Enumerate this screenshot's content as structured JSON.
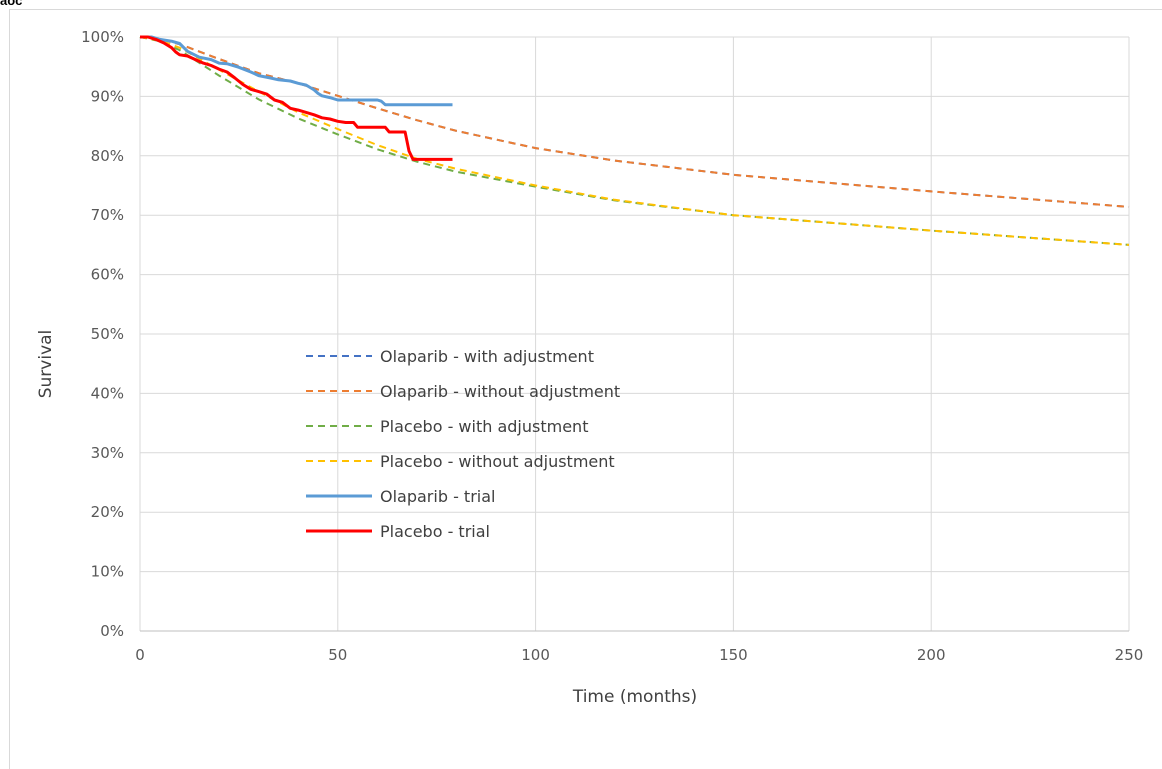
{
  "header": {
    "label": "aoc"
  },
  "chart_data": {
    "type": "line",
    "title": "",
    "xlabel": "Time (months)",
    "ylabel": "Survival",
    "xlim": [
      0,
      250
    ],
    "ylim": [
      0,
      100
    ],
    "x_ticks": [
      0,
      50,
      100,
      150,
      200,
      250
    ],
    "y_ticks": [
      0,
      10,
      20,
      30,
      40,
      50,
      60,
      70,
      80,
      90,
      100
    ],
    "y_tick_labels": [
      "0%",
      "10%",
      "20%",
      "30%",
      "40%",
      "50%",
      "60%",
      "70%",
      "80%",
      "90%",
      "100%"
    ],
    "grid": true,
    "legend_position": "center-left",
    "series": [
      {
        "name": "Olaparib - with adjustment",
        "style": "dashed",
        "color": "#4472c4",
        "x": [
          0,
          5,
          10,
          20,
          30,
          40,
          50,
          60,
          70,
          80,
          100,
          120,
          150,
          200,
          250
        ],
        "y": [
          100,
          99.6,
          98.8,
          96.3,
          93.9,
          92.2,
          90.1,
          88.0,
          86.0,
          84.2,
          81.3,
          79.2,
          76.8,
          74.0,
          71.4
        ]
      },
      {
        "name": "Olaparib - without adjustment",
        "style": "dashed",
        "color": "#ed7d31",
        "x": [
          0,
          5,
          10,
          20,
          30,
          40,
          50,
          60,
          70,
          80,
          100,
          120,
          150,
          200,
          250
        ],
        "y": [
          100,
          99.6,
          98.8,
          96.3,
          93.9,
          92.2,
          90.1,
          88.0,
          86.0,
          84.2,
          81.3,
          79.2,
          76.8,
          74.0,
          71.4
        ]
      },
      {
        "name": "Placebo - with adjustment",
        "style": "dashed",
        "color": "#70ad47",
        "x": [
          0,
          5,
          10,
          20,
          30,
          40,
          50,
          60,
          70,
          80,
          100,
          120,
          150,
          200,
          250
        ],
        "y": [
          100,
          99.3,
          97.8,
          93.5,
          89.5,
          86.3,
          83.6,
          81.1,
          79.0,
          77.3,
          74.8,
          72.5,
          70.0,
          67.4,
          65.0
        ]
      },
      {
        "name": "Placebo - without adjustment",
        "style": "dashed",
        "color": "#ffc000",
        "x": [
          0,
          5,
          10,
          20,
          30,
          40,
          50,
          60,
          70,
          80,
          100,
          120,
          150,
          200,
          250
        ],
        "y": [
          100,
          99.4,
          98.2,
          94.5,
          90.8,
          87.3,
          84.5,
          81.8,
          79.5,
          77.8,
          75.0,
          72.6,
          70.0,
          67.4,
          65.0
        ]
      },
      {
        "name": "Olaparib - trial",
        "style": "solid",
        "color": "#5b9bd5",
        "x": [
          0,
          3,
          5,
          8,
          10,
          12,
          15,
          18,
          20,
          22,
          25,
          28,
          30,
          33,
          35,
          38,
          40,
          42,
          44,
          45,
          46,
          48,
          50,
          55,
          60,
          61,
          62,
          65,
          70,
          79
        ],
        "y": [
          100,
          100,
          99.6,
          99.3,
          98.9,
          97.6,
          96.6,
          96.2,
          95.6,
          95.5,
          94.9,
          94.1,
          93.5,
          93.1,
          92.8,
          92.6,
          92.2,
          91.9,
          91.1,
          90.5,
          90.1,
          89.8,
          89.4,
          89.4,
          89.4,
          89.2,
          88.6,
          88.6,
          88.6,
          88.6
        ]
      },
      {
        "name": "Placebo - trial",
        "style": "solid",
        "color": "#ff0000",
        "x": [
          0,
          2,
          4,
          6,
          8,
          9,
          10,
          12,
          14,
          16,
          18,
          20,
          22,
          24,
          26,
          28,
          30,
          32,
          34,
          36,
          38,
          40,
          42,
          44,
          46,
          48,
          50,
          52,
          54,
          55,
          58,
          60,
          62,
          63,
          65,
          67,
          68,
          69,
          70,
          79
        ],
        "y": [
          100,
          100,
          99.6,
          99.0,
          98.2,
          97.5,
          97.0,
          96.8,
          96.2,
          95.6,
          95.2,
          94.6,
          94.1,
          93.1,
          92.0,
          91.2,
          90.8,
          90.4,
          89.4,
          89.0,
          88.0,
          87.7,
          87.3,
          86.9,
          86.4,
          86.2,
          85.8,
          85.6,
          85.6,
          84.8,
          84.8,
          84.8,
          84.8,
          84.0,
          84.0,
          84.0,
          80.8,
          79.4,
          79.4,
          79.4
        ]
      }
    ]
  }
}
